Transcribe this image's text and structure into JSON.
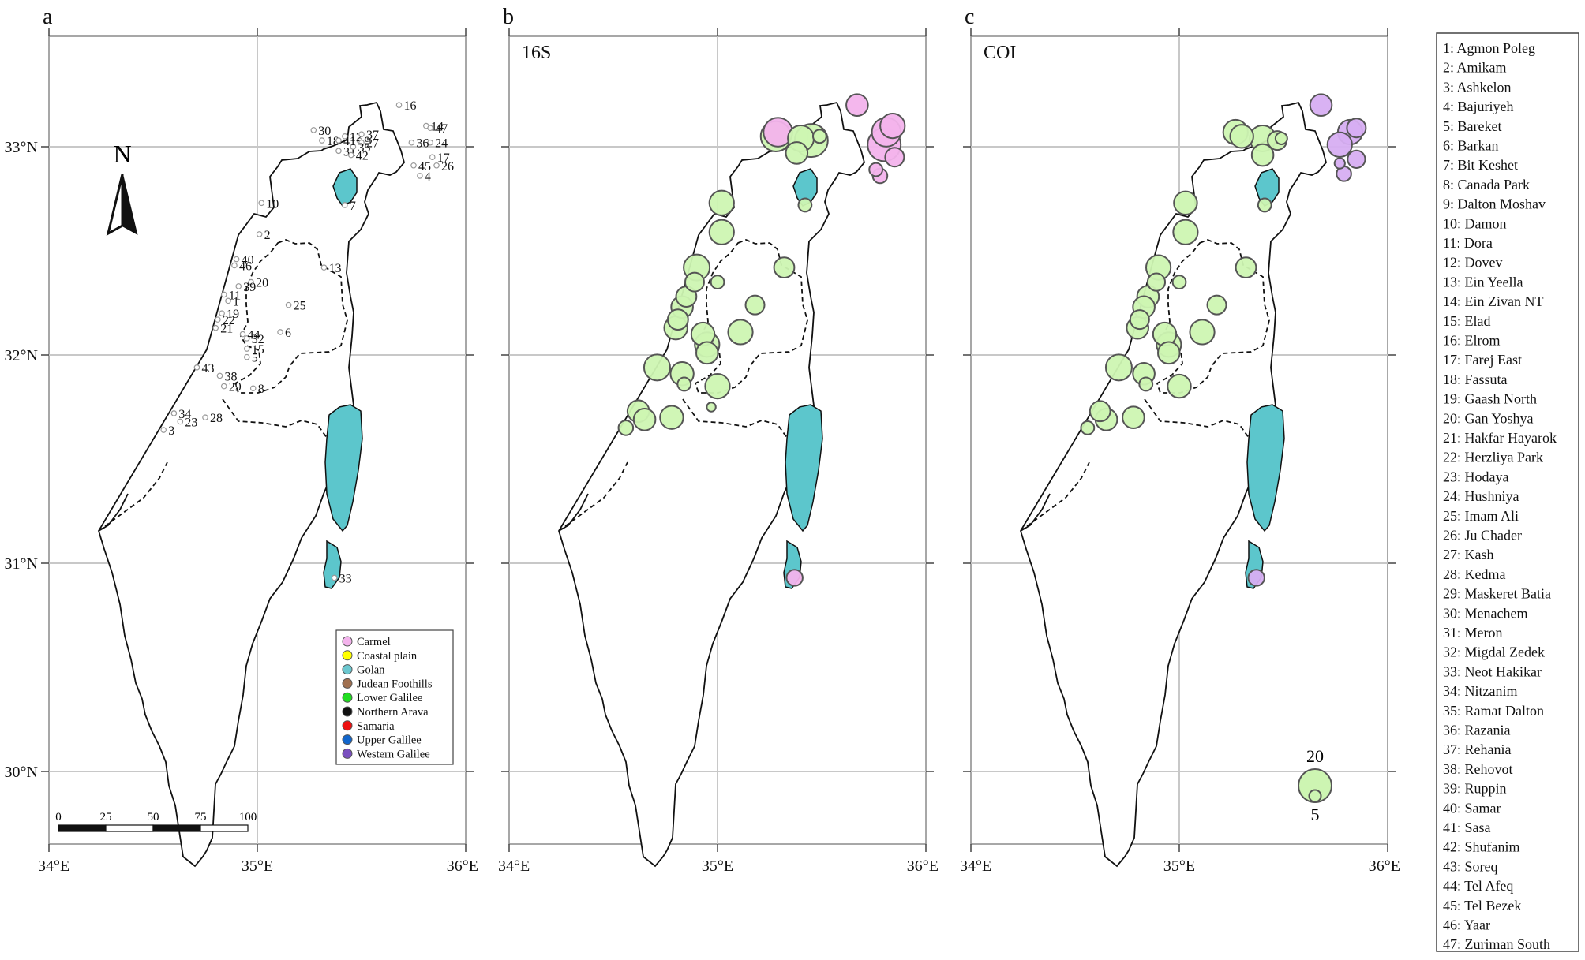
{
  "panel_labels": [
    "a",
    "b",
    "c"
  ],
  "panel_titles": [
    "",
    "16S",
    "COI"
  ],
  "axis": {
    "lon_ticks": [
      "34°E",
      "35°E",
      "36°E"
    ],
    "lat_ticks": [
      "33°N",
      "32°N",
      "31°N",
      "30°N"
    ]
  },
  "north_arrow": "N",
  "scale_bar": {
    "labels": [
      "0",
      "25",
      "50",
      "75",
      "100"
    ]
  },
  "colors": {
    "carmel": "#f3b3ec",
    "coastal": "#ffff00",
    "golan": "#6bc7cf",
    "judean": "#a07050",
    "lower_galilee": "#22dd22",
    "arava": "#111111",
    "samaria": "#ee1111",
    "upper_galilee": "#1166cc",
    "western_galilee": "#7a4fbf",
    "water": "#5cc6cc",
    "bubble_green": "#cdf5b2",
    "bubble_pink": "#f3b3ec",
    "bubble_lilac": "#d7aef2"
  },
  "region_legend": [
    {
      "label": "Carmel",
      "color": "#f3b3ec"
    },
    {
      "label": "Coastal plain",
      "color": "#ffff00"
    },
    {
      "label": "Golan",
      "color": "#6bc7cf"
    },
    {
      "label": "Judean Foothills",
      "color": "#a07050"
    },
    {
      "label": "Lower Galilee",
      "color": "#22dd22"
    },
    {
      "label": "Northern Arava",
      "color": "#111111"
    },
    {
      "label": "Samaria",
      "color": "#ee1111"
    },
    {
      "label": "Upper Galilee",
      "color": "#1166cc"
    },
    {
      "label": "Western Galilee",
      "color": "#7a4fbf"
    }
  ],
  "size_legend": {
    "large": "20",
    "small": "5"
  },
  "site_key": [
    "1: Agmon Poleg",
    "2: Amikam",
    "3: Ashkelon",
    "4: Bajuriyeh",
    "5: Bareket",
    "6: Barkan",
    "7: Bit Keshet",
    "8: Canada Park",
    "9: Dalton Moshav",
    "10: Damon",
    "11: Dora",
    "12: Dovev",
    "13: Ein Yeella",
    "14: Ein Zivan NT",
    "15: Elad",
    "16: Elrom",
    "17: Farej East",
    "18: Fassuta",
    "19: Gaash North",
    "20: Gan Yoshya",
    "21: Hakfar Hayarok",
    "22: Herzliya Park",
    "23: Hodaya",
    "24: Hushniya",
    "25: Imam Ali",
    "26: Ju Chader",
    "27: Kash",
    "28: Kedma",
    "29: Maskeret Batia",
    "30: Menachem",
    "31: Meron",
    "32: Migdal Zedek",
    "33: Neot Hakikar",
    "34: Nitzanim",
    "35: Ramat Dalton",
    "36: Razania",
    "37: Rehania",
    "38: Rehovot",
    "39: Ruppin",
    "40: Samar",
    "41: Sasa",
    "42: Shufanim",
    "43: Soreq",
    "44: Tel Afeq",
    "45: Tel Bezek",
    "46: Yaar",
    "47: Zuriman South"
  ],
  "sites": [
    {
      "id": "1",
      "lon": 34.86,
      "lat": 32.26
    },
    {
      "id": "2",
      "lon": 35.01,
      "lat": 32.58
    },
    {
      "id": "3",
      "lon": 34.55,
      "lat": 31.64
    },
    {
      "id": "4",
      "lon": 35.78,
      "lat": 32.86
    },
    {
      "id": "5",
      "lon": 34.95,
      "lat": 31.99
    },
    {
      "id": "6",
      "lon": 35.11,
      "lat": 32.11
    },
    {
      "id": "7",
      "lon": 35.42,
      "lat": 32.72
    },
    {
      "id": "8",
      "lon": 34.98,
      "lat": 31.84
    },
    {
      "id": "9",
      "lon": 35.49,
      "lat": 33.03
    },
    {
      "id": "10",
      "lon": 35.02,
      "lat": 32.73
    },
    {
      "id": "11",
      "lon": 34.84,
      "lat": 32.29
    },
    {
      "id": "12",
      "lon": 35.42,
      "lat": 33.05
    },
    {
      "id": "13",
      "lon": 35.32,
      "lat": 32.42
    },
    {
      "id": "14",
      "lon": 35.81,
      "lat": 33.1
    },
    {
      "id": "15",
      "lon": 34.95,
      "lat": 32.03
    },
    {
      "id": "16",
      "lon": 35.68,
      "lat": 33.2
    },
    {
      "id": "17",
      "lon": 35.84,
      "lat": 32.95
    },
    {
      "id": "18",
      "lon": 35.31,
      "lat": 33.03
    },
    {
      "id": "19",
      "lon": 34.83,
      "lat": 32.2
    },
    {
      "id": "20",
      "lon": 34.97,
      "lat": 32.35
    },
    {
      "id": "21",
      "lon": 34.8,
      "lat": 32.13
    },
    {
      "id": "22",
      "lon": 34.81,
      "lat": 32.17
    },
    {
      "id": "23",
      "lon": 34.63,
      "lat": 31.68
    },
    {
      "id": "24",
      "lon": 35.83,
      "lat": 33.02
    },
    {
      "id": "25",
      "lon": 35.15,
      "lat": 32.24
    },
    {
      "id": "26",
      "lon": 35.86,
      "lat": 32.91
    },
    {
      "id": "27",
      "lon": 35.5,
      "lat": 33.02
    },
    {
      "id": "28",
      "lon": 34.75,
      "lat": 31.7
    },
    {
      "id": "29",
      "lon": 34.84,
      "lat": 31.85
    },
    {
      "id": "30",
      "lon": 35.27,
      "lat": 33.08
    },
    {
      "id": "31",
      "lon": 35.39,
      "lat": 32.98
    },
    {
      "id": "32",
      "lon": 34.95,
      "lat": 32.08
    },
    {
      "id": "33",
      "lon": 35.37,
      "lat": 30.93
    },
    {
      "id": "34",
      "lon": 34.6,
      "lat": 31.72
    },
    {
      "id": "35",
      "lon": 35.46,
      "lat": 33.0
    },
    {
      "id": "36",
      "lon": 35.74,
      "lat": 33.02
    },
    {
      "id": "37",
      "lon": 35.5,
      "lat": 33.06
    },
    {
      "id": "38",
      "lon": 34.82,
      "lat": 31.9
    },
    {
      "id": "39",
      "lon": 34.91,
      "lat": 32.33
    },
    {
      "id": "40",
      "lon": 34.9,
      "lat": 32.46
    },
    {
      "id": "41",
      "lon": 35.39,
      "lat": 33.03
    },
    {
      "id": "42",
      "lon": 35.45,
      "lat": 32.96
    },
    {
      "id": "43",
      "lon": 34.71,
      "lat": 31.94
    },
    {
      "id": "44",
      "lon": 34.93,
      "lat": 32.1
    },
    {
      "id": "45",
      "lon": 35.75,
      "lat": 32.91
    },
    {
      "id": "46",
      "lon": 34.89,
      "lat": 32.43
    },
    {
      "id": "47",
      "lon": 35.83,
      "lat": 33.09
    }
  ],
  "bubbles_16s": [
    {
      "lon": 35.29,
      "lat": 33.07,
      "size": 17,
      "color": "pink"
    },
    {
      "lon": 35.28,
      "lat": 33.05,
      "size": 18,
      "color": "green"
    },
    {
      "lon": 35.4,
      "lat": 33.04,
      "size": 15,
      "color": "green"
    },
    {
      "lon": 35.45,
      "lat": 33.03,
      "size": 20,
      "color": "green"
    },
    {
      "lon": 35.38,
      "lat": 32.97,
      "size": 12,
      "color": "green"
    },
    {
      "lon": 35.49,
      "lat": 33.05,
      "size": 6,
      "color": "green"
    },
    {
      "lon": 35.67,
      "lat": 33.2,
      "size": 12,
      "color": "pink"
    },
    {
      "lon": 35.81,
      "lat": 33.07,
      "size": 17,
      "color": "pink"
    },
    {
      "lon": 35.84,
      "lat": 33.1,
      "size": 14,
      "color": "pink"
    },
    {
      "lon": 35.8,
      "lat": 33.01,
      "size": 20,
      "color": "pink"
    },
    {
      "lon": 35.85,
      "lat": 32.95,
      "size": 10,
      "color": "pink"
    },
    {
      "lon": 35.76,
      "lat": 32.89,
      "size": 6,
      "color": "pink"
    },
    {
      "lon": 35.78,
      "lat": 32.86,
      "size": 7,
      "color": "pink"
    },
    {
      "lon": 35.42,
      "lat": 32.72,
      "size": 6,
      "color": "green"
    },
    {
      "lon": 35.02,
      "lat": 32.73,
      "size": 14,
      "color": "green"
    },
    {
      "lon": 35.02,
      "lat": 32.59,
      "size": 14,
      "color": "green"
    },
    {
      "lon": 35.32,
      "lat": 32.42,
      "size": 11,
      "color": "green"
    },
    {
      "lon": 34.9,
      "lat": 32.42,
      "size": 15,
      "color": "green"
    },
    {
      "lon": 34.89,
      "lat": 32.35,
      "size": 10,
      "color": "green"
    },
    {
      "lon": 35.0,
      "lat": 32.35,
      "size": 6,
      "color": "green"
    },
    {
      "lon": 34.85,
      "lat": 32.28,
      "size": 11,
      "color": "green"
    },
    {
      "lon": 34.83,
      "lat": 32.23,
      "size": 12,
      "color": "green"
    },
    {
      "lon": 34.81,
      "lat": 32.17,
      "size": 11,
      "color": "green"
    },
    {
      "lon": 34.8,
      "lat": 32.13,
      "size": 13,
      "color": "green"
    },
    {
      "lon": 35.18,
      "lat": 32.24,
      "size": 10,
      "color": "green"
    },
    {
      "lon": 35.11,
      "lat": 32.11,
      "size": 14,
      "color": "green"
    },
    {
      "lon": 34.93,
      "lat": 32.1,
      "size": 13,
      "color": "green"
    },
    {
      "lon": 34.95,
      "lat": 32.05,
      "size": 14,
      "color": "green"
    },
    {
      "lon": 34.95,
      "lat": 32.01,
      "size": 12,
      "color": "green"
    },
    {
      "lon": 34.71,
      "lat": 31.94,
      "size": 15,
      "color": "green"
    },
    {
      "lon": 34.83,
      "lat": 31.91,
      "size": 13,
      "color": "green"
    },
    {
      "lon": 34.84,
      "lat": 31.86,
      "size": 6,
      "color": "green"
    },
    {
      "lon": 35.0,
      "lat": 31.85,
      "size": 14,
      "color": "green"
    },
    {
      "lon": 34.97,
      "lat": 31.75,
      "size": 3,
      "color": "green"
    },
    {
      "lon": 34.62,
      "lat": 31.73,
      "size": 12,
      "color": "green"
    },
    {
      "lon": 34.65,
      "lat": 31.69,
      "size": 12,
      "color": "green"
    },
    {
      "lon": 34.78,
      "lat": 31.7,
      "size": 13,
      "color": "green"
    },
    {
      "lon": 34.56,
      "lat": 31.65,
      "size": 7,
      "color": "green"
    },
    {
      "lon": 35.37,
      "lat": 30.93,
      "size": 8,
      "color": "pink"
    }
  ],
  "bubbles_coi": [
    {
      "lon": 35.27,
      "lat": 33.07,
      "size": 14,
      "color": "green"
    },
    {
      "lon": 35.3,
      "lat": 33.05,
      "size": 13,
      "color": "green"
    },
    {
      "lon": 35.4,
      "lat": 33.04,
      "size": 15,
      "color": "green"
    },
    {
      "lon": 35.47,
      "lat": 33.03,
      "size": 10,
      "color": "green"
    },
    {
      "lon": 35.4,
      "lat": 32.96,
      "size": 12,
      "color": "green"
    },
    {
      "lon": 35.49,
      "lat": 33.04,
      "size": 5,
      "color": "green"
    },
    {
      "lon": 35.68,
      "lat": 33.2,
      "size": 12,
      "color": "lilac"
    },
    {
      "lon": 35.82,
      "lat": 33.07,
      "size": 14,
      "color": "lilac"
    },
    {
      "lon": 35.85,
      "lat": 33.09,
      "size": 10,
      "color": "lilac"
    },
    {
      "lon": 35.77,
      "lat": 33.01,
      "size": 14,
      "color": "lilac"
    },
    {
      "lon": 35.85,
      "lat": 32.94,
      "size": 9,
      "color": "lilac"
    },
    {
      "lon": 35.77,
      "lat": 32.92,
      "size": 4,
      "color": "lilac"
    },
    {
      "lon": 35.79,
      "lat": 32.87,
      "size": 7,
      "color": "lilac"
    },
    {
      "lon": 35.41,
      "lat": 32.72,
      "size": 6,
      "color": "green"
    },
    {
      "lon": 35.03,
      "lat": 32.73,
      "size": 13,
      "color": "green"
    },
    {
      "lon": 35.03,
      "lat": 32.59,
      "size": 14,
      "color": "green"
    },
    {
      "lon": 35.32,
      "lat": 32.42,
      "size": 11,
      "color": "green"
    },
    {
      "lon": 34.9,
      "lat": 32.42,
      "size": 14,
      "color": "green"
    },
    {
      "lon": 34.89,
      "lat": 32.35,
      "size": 9,
      "color": "green"
    },
    {
      "lon": 35.0,
      "lat": 32.35,
      "size": 6,
      "color": "green"
    },
    {
      "lon": 34.85,
      "lat": 32.28,
      "size": 12,
      "color": "green"
    },
    {
      "lon": 34.83,
      "lat": 32.23,
      "size": 12,
      "color": "green"
    },
    {
      "lon": 34.81,
      "lat": 32.17,
      "size": 10,
      "color": "green"
    },
    {
      "lon": 34.8,
      "lat": 32.13,
      "size": 12,
      "color": "green"
    },
    {
      "lon": 35.18,
      "lat": 32.24,
      "size": 10,
      "color": "green"
    },
    {
      "lon": 35.11,
      "lat": 32.11,
      "size": 14,
      "color": "green"
    },
    {
      "lon": 34.93,
      "lat": 32.1,
      "size": 13,
      "color": "green"
    },
    {
      "lon": 34.95,
      "lat": 32.05,
      "size": 14,
      "color": "green"
    },
    {
      "lon": 34.95,
      "lat": 32.01,
      "size": 12,
      "color": "green"
    },
    {
      "lon": 34.71,
      "lat": 31.94,
      "size": 15,
      "color": "green"
    },
    {
      "lon": 34.83,
      "lat": 31.91,
      "size": 12,
      "color": "green"
    },
    {
      "lon": 34.84,
      "lat": 31.86,
      "size": 6,
      "color": "green"
    },
    {
      "lon": 35.0,
      "lat": 31.85,
      "size": 13,
      "color": "green"
    },
    {
      "lon": 34.62,
      "lat": 31.73,
      "size": 11,
      "color": "green"
    },
    {
      "lon": 34.65,
      "lat": 31.69,
      "size": 12,
      "color": "green"
    },
    {
      "lon": 34.78,
      "lat": 31.7,
      "size": 12,
      "color": "green"
    },
    {
      "lon": 34.56,
      "lat": 31.65,
      "size": 6,
      "color": "green"
    },
    {
      "lon": 35.37,
      "lat": 30.93,
      "size": 8,
      "color": "lilac"
    }
  ]
}
